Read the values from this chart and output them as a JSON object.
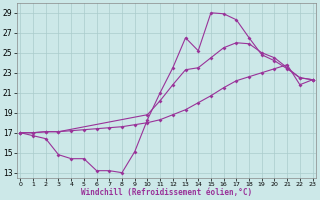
{
  "xlabel": "Windchill (Refroidissement éolien,°C)",
  "background_color": "#cce8e8",
  "grid_color": "#aacccc",
  "line_color": "#993399",
  "xlim": [
    -0.3,
    23.3
  ],
  "ylim": [
    12.5,
    30.0
  ],
  "yticks": [
    13,
    15,
    17,
    19,
    21,
    23,
    25,
    27,
    29
  ],
  "xticks": [
    0,
    1,
    2,
    3,
    4,
    5,
    6,
    7,
    8,
    9,
    10,
    11,
    12,
    13,
    14,
    15,
    16,
    17,
    18,
    19,
    20,
    21,
    22,
    23
  ],
  "line1_x": [
    0,
    1,
    2,
    3,
    4,
    5,
    6,
    7,
    8,
    9,
    10,
    11,
    12,
    13,
    14,
    15,
    16,
    17,
    18,
    19,
    20,
    21,
    22,
    23
  ],
  "line1_y": [
    17.0,
    16.7,
    16.4,
    14.8,
    14.4,
    14.4,
    13.2,
    13.2,
    13.0,
    15.1,
    18.3,
    21.0,
    23.5,
    26.5,
    25.2,
    29.0,
    28.9,
    28.3,
    26.5,
    24.8,
    24.2,
    23.4,
    22.5,
    22.3
  ],
  "line2_x": [
    0,
    1,
    2,
    3,
    4,
    5,
    6,
    7,
    8,
    9,
    10,
    11,
    12,
    13,
    14,
    15,
    16,
    17,
    18,
    19,
    20,
    21,
    22,
    23
  ],
  "line2_y": [
    17.0,
    17.0,
    17.1,
    17.1,
    17.2,
    17.3,
    17.4,
    17.5,
    17.6,
    17.8,
    18.0,
    18.3,
    18.8,
    19.3,
    20.0,
    20.7,
    21.5,
    22.2,
    22.6,
    23.0,
    23.4,
    23.8,
    21.8,
    22.3
  ],
  "line3_x": [
    0,
    1,
    2,
    3,
    10,
    11,
    12,
    13,
    14,
    15,
    16,
    17,
    18,
    19,
    20,
    21,
    22,
    23
  ],
  "line3_y": [
    17.0,
    17.0,
    17.1,
    17.1,
    18.8,
    20.2,
    21.8,
    23.3,
    23.5,
    24.5,
    25.5,
    26.0,
    25.9,
    25.0,
    24.5,
    23.5,
    22.5,
    22.3
  ]
}
